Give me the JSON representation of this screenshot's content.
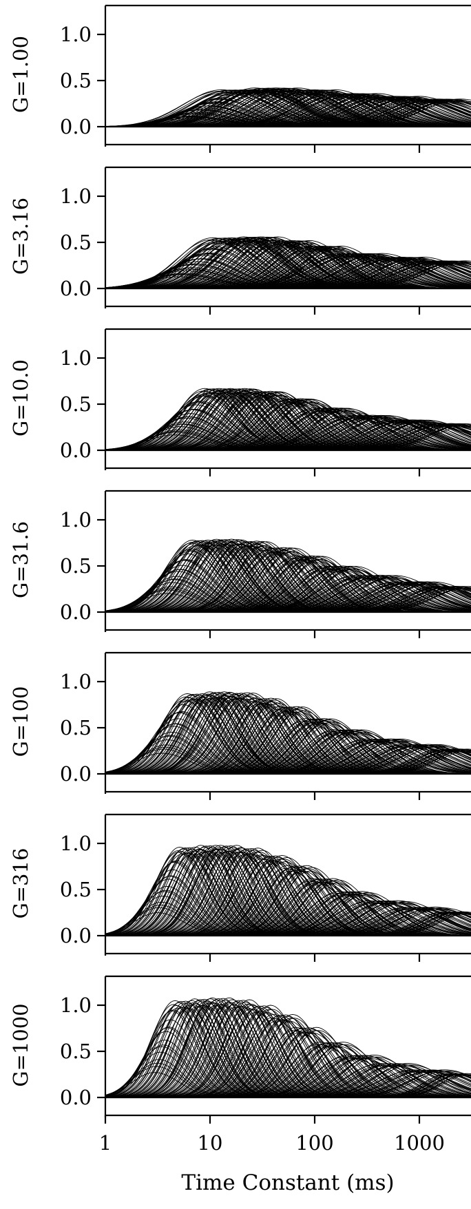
{
  "chart_data": {
    "type": "line",
    "xlabel": "Time Constant (ms)",
    "x_scale": "log",
    "xlim": [
      1,
      3000
    ],
    "x_ticks": [
      1,
      10,
      100,
      1000
    ],
    "x_tick_labels": [
      "1",
      "10",
      "100",
      "1000"
    ],
    "y_ticks": [
      0.0,
      0.5,
      1.0
    ],
    "y_tick_labels": [
      "0.0",
      "0.5",
      "1.0"
    ],
    "ylim": [
      0,
      1.25
    ],
    "grid": false,
    "legend": "none",
    "line_color": "#000000",
    "panels": [
      {
        "label": "G=1.00",
        "gain": 1.0,
        "curves_per_band": 24,
        "bands": [
          {
            "x_start": 6,
            "x_end": 14,
            "peak": 0.35
          },
          {
            "x_start": 12,
            "x_end": 35,
            "peak": 0.4
          },
          {
            "x_start": 25,
            "x_end": 70,
            "peak": 0.42
          },
          {
            "x_start": 60,
            "x_end": 160,
            "peak": 0.4
          },
          {
            "x_start": 140,
            "x_end": 400,
            "peak": 0.36
          },
          {
            "x_start": 350,
            "x_end": 1000,
            "peak": 0.33
          },
          {
            "x_start": 900,
            "x_end": 2500,
            "peak": 0.3
          }
        ]
      },
      {
        "label": "G=3.16",
        "gain": 3.16,
        "curves_per_band": 24,
        "bands": [
          {
            "x_start": 5,
            "x_end": 12,
            "peak": 0.5
          },
          {
            "x_start": 10,
            "x_end": 25,
            "peak": 0.55
          },
          {
            "x_start": 20,
            "x_end": 45,
            "peak": 0.56
          },
          {
            "x_start": 40,
            "x_end": 90,
            "peak": 0.52
          },
          {
            "x_start": 80,
            "x_end": 180,
            "peak": 0.46
          },
          {
            "x_start": 160,
            "x_end": 450,
            "peak": 0.38
          },
          {
            "x_start": 400,
            "x_end": 1100,
            "peak": 0.34
          },
          {
            "x_start": 1000,
            "x_end": 2800,
            "peak": 0.3
          }
        ]
      },
      {
        "label": "G=10.0",
        "gain": 10.0,
        "curves_per_band": 22,
        "bands": [
          {
            "x_start": 4.5,
            "x_end": 9,
            "peak": 0.65
          },
          {
            "x_start": 8.5,
            "x_end": 16,
            "peak": 0.67
          },
          {
            "x_start": 15,
            "x_end": 28,
            "peak": 0.67
          },
          {
            "x_start": 26,
            "x_end": 50,
            "peak": 0.64
          },
          {
            "x_start": 48,
            "x_end": 100,
            "peak": 0.56
          },
          {
            "x_start": 95,
            "x_end": 220,
            "peak": 0.46
          },
          {
            "x_start": 200,
            "x_end": 550,
            "peak": 0.38
          },
          {
            "x_start": 500,
            "x_end": 1300,
            "peak": 0.33
          },
          {
            "x_start": 1200,
            "x_end": 3000,
            "peak": 0.29
          }
        ]
      },
      {
        "label": "G=31.6",
        "gain": 31.6,
        "curves_per_band": 20,
        "bands": [
          {
            "x_start": 3.8,
            "x_end": 7,
            "peak": 0.78
          },
          {
            "x_start": 6.5,
            "x_end": 12,
            "peak": 0.78
          },
          {
            "x_start": 11,
            "x_end": 20,
            "peak": 0.79
          },
          {
            "x_start": 19,
            "x_end": 35,
            "peak": 0.77
          },
          {
            "x_start": 33,
            "x_end": 65,
            "peak": 0.7
          },
          {
            "x_start": 62,
            "x_end": 120,
            "peak": 0.61
          },
          {
            "x_start": 115,
            "x_end": 250,
            "peak": 0.5
          },
          {
            "x_start": 230,
            "x_end": 600,
            "peak": 0.4
          },
          {
            "x_start": 550,
            "x_end": 1400,
            "peak": 0.33
          },
          {
            "x_start": 1300,
            "x_end": 3000,
            "peak": 0.28
          }
        ]
      },
      {
        "label": "G=100",
        "gain": 100,
        "curves_per_band": 18,
        "bands": [
          {
            "x_start": 3.4,
            "x_end": 6,
            "peak": 0.86
          },
          {
            "x_start": 5.8,
            "x_end": 10,
            "peak": 0.87
          },
          {
            "x_start": 9.5,
            "x_end": 16,
            "peak": 0.89
          },
          {
            "x_start": 15,
            "x_end": 27,
            "peak": 0.88
          },
          {
            "x_start": 26,
            "x_end": 45,
            "peak": 0.82
          },
          {
            "x_start": 44,
            "x_end": 80,
            "peak": 0.73
          },
          {
            "x_start": 78,
            "x_end": 150,
            "peak": 0.6
          },
          {
            "x_start": 145,
            "x_end": 300,
            "peak": 0.48
          },
          {
            "x_start": 290,
            "x_end": 700,
            "peak": 0.38
          },
          {
            "x_start": 650,
            "x_end": 1600,
            "peak": 0.32
          },
          {
            "x_start": 1500,
            "x_end": 3000,
            "peak": 0.27
          }
        ]
      },
      {
        "label": "G=316",
        "gain": 316,
        "curves_per_band": 16,
        "bands": [
          {
            "x_start": 3.1,
            "x_end": 5,
            "peak": 0.95
          },
          {
            "x_start": 4.9,
            "x_end": 8,
            "peak": 0.96
          },
          {
            "x_start": 7.8,
            "x_end": 12.5,
            "peak": 0.98
          },
          {
            "x_start": 12,
            "x_end": 20,
            "peak": 0.98
          },
          {
            "x_start": 19,
            "x_end": 32,
            "peak": 0.95
          },
          {
            "x_start": 31,
            "x_end": 55,
            "peak": 0.87
          },
          {
            "x_start": 52,
            "x_end": 95,
            "peak": 0.76
          },
          {
            "x_start": 90,
            "x_end": 170,
            "peak": 0.62
          },
          {
            "x_start": 160,
            "x_end": 330,
            "peak": 0.48
          },
          {
            "x_start": 310,
            "x_end": 750,
            "peak": 0.38
          },
          {
            "x_start": 700,
            "x_end": 1700,
            "peak": 0.31
          },
          {
            "x_start": 1600,
            "x_end": 3000,
            "peak": 0.26
          }
        ]
      },
      {
        "label": "G=1000",
        "gain": 1000,
        "curves_per_band": 14,
        "bands": [
          {
            "x_start": 2.9,
            "x_end": 4.5,
            "peak": 1.02
          },
          {
            "x_start": 4.4,
            "x_end": 7,
            "peak": 1.05
          },
          {
            "x_start": 6.8,
            "x_end": 10.5,
            "peak": 1.07
          },
          {
            "x_start": 10,
            "x_end": 16,
            "peak": 1.08
          },
          {
            "x_start": 15.5,
            "x_end": 25,
            "peak": 1.06
          },
          {
            "x_start": 24,
            "x_end": 40,
            "peak": 1.0
          },
          {
            "x_start": 38,
            "x_end": 65,
            "peak": 0.9
          },
          {
            "x_start": 62,
            "x_end": 110,
            "peak": 0.76
          },
          {
            "x_start": 105,
            "x_end": 200,
            "peak": 0.6
          },
          {
            "x_start": 190,
            "x_end": 400,
            "peak": 0.46
          },
          {
            "x_start": 380,
            "x_end": 850,
            "peak": 0.37
          },
          {
            "x_start": 800,
            "x_end": 1900,
            "peak": 0.3
          },
          {
            "x_start": 1800,
            "x_end": 3000,
            "peak": 0.26
          }
        ]
      }
    ]
  }
}
